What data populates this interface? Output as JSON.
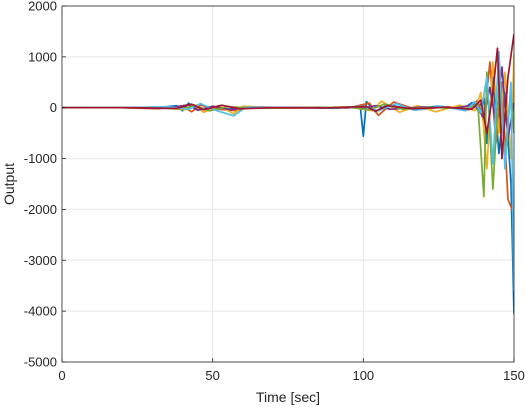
{
  "chart_data": {
    "type": "line",
    "xlabel": "Time [sec]",
    "ylabel": "Output",
    "xlim": [
      0,
      150
    ],
    "ylim": [
      -5000,
      2000
    ],
    "xticks": [
      0,
      50,
      100,
      150
    ],
    "yticks": [
      -5000,
      -4000,
      -3000,
      -2000,
      -1000,
      0,
      1000,
      2000
    ],
    "grid": true,
    "series": [
      {
        "color": "#0072BD",
        "points": [
          [
            0,
            0
          ],
          [
            20,
            0
          ],
          [
            30,
            -10
          ],
          [
            38,
            40
          ],
          [
            40,
            -60
          ],
          [
            42,
            90
          ],
          [
            45,
            -40
          ],
          [
            50,
            20
          ],
          [
            55,
            -30
          ],
          [
            60,
            10
          ],
          [
            70,
            0
          ],
          [
            80,
            5
          ],
          [
            90,
            -10
          ],
          [
            99,
            10
          ],
          [
            100,
            -560
          ],
          [
            101,
            120
          ],
          [
            104,
            -80
          ],
          [
            108,
            60
          ],
          [
            115,
            -20
          ],
          [
            125,
            30
          ],
          [
            133,
            -30
          ],
          [
            136,
            100
          ],
          [
            138,
            -50
          ],
          [
            140,
            200
          ],
          [
            141,
            -700
          ],
          [
            143,
            600
          ],
          [
            145,
            -900
          ],
          [
            147,
            300
          ],
          [
            149,
            -1500
          ],
          [
            150,
            -4050
          ]
        ]
      },
      {
        "color": "#D95319",
        "points": [
          [
            0,
            0
          ],
          [
            20,
            0
          ],
          [
            32,
            -20
          ],
          [
            40,
            30
          ],
          [
            43,
            -80
          ],
          [
            46,
            50
          ],
          [
            52,
            -30
          ],
          [
            58,
            -60
          ],
          [
            62,
            20
          ],
          [
            75,
            0
          ],
          [
            85,
            10
          ],
          [
            95,
            -5
          ],
          [
            102,
            90
          ],
          [
            105,
            -150
          ],
          [
            110,
            110
          ],
          [
            118,
            -40
          ],
          [
            128,
            20
          ],
          [
            135,
            -40
          ],
          [
            138,
            150
          ],
          [
            140,
            -300
          ],
          [
            142,
            900
          ],
          [
            144,
            -700
          ],
          [
            146,
            500
          ],
          [
            148,
            -1800
          ],
          [
            150,
            -2100
          ]
        ]
      },
      {
        "color": "#EDB120",
        "points": [
          [
            0,
            0
          ],
          [
            20,
            0
          ],
          [
            30,
            10
          ],
          [
            41,
            -40
          ],
          [
            44,
            60
          ],
          [
            47,
            -90
          ],
          [
            52,
            40
          ],
          [
            57,
            -120
          ],
          [
            60,
            30
          ],
          [
            72,
            -10
          ],
          [
            85,
            0
          ],
          [
            95,
            20
          ],
          [
            103,
            -60
          ],
          [
            106,
            130
          ],
          [
            112,
            -90
          ],
          [
            118,
            40
          ],
          [
            124,
            -80
          ],
          [
            132,
            50
          ],
          [
            137,
            -60
          ],
          [
            139,
            300
          ],
          [
            141,
            -1200
          ],
          [
            143,
            900
          ],
          [
            145,
            -500
          ],
          [
            147,
            700
          ],
          [
            149,
            -1000
          ],
          [
            150,
            1050
          ]
        ]
      },
      {
        "color": "#7E2F8E",
        "points": [
          [
            0,
            0
          ],
          [
            25,
            0
          ],
          [
            35,
            -10
          ],
          [
            42,
            60
          ],
          [
            45,
            -50
          ],
          [
            50,
            30
          ],
          [
            56,
            -40
          ],
          [
            62,
            10
          ],
          [
            80,
            0
          ],
          [
            92,
            5
          ],
          [
            100,
            -5
          ],
          [
            104,
            40
          ],
          [
            109,
            -30
          ],
          [
            120,
            15
          ],
          [
            130,
            -10
          ],
          [
            137,
            60
          ],
          [
            140,
            -200
          ],
          [
            142,
            400
          ],
          [
            144,
            -300
          ],
          [
            146,
            800
          ],
          [
            148,
            -600
          ],
          [
            150,
            100
          ]
        ]
      },
      {
        "color": "#77AC30",
        "points": [
          [
            0,
            0
          ],
          [
            30,
            0
          ],
          [
            40,
            -20
          ],
          [
            44,
            40
          ],
          [
            49,
            -60
          ],
          [
            55,
            20
          ],
          [
            65,
            -10
          ],
          [
            80,
            0
          ],
          [
            95,
            10
          ],
          [
            102,
            -40
          ],
          [
            107,
            70
          ],
          [
            113,
            -30
          ],
          [
            122,
            10
          ],
          [
            134,
            -20
          ],
          [
            138,
            80
          ],
          [
            140,
            -1750
          ],
          [
            141,
            700
          ],
          [
            143,
            -1600
          ],
          [
            145,
            400
          ],
          [
            147,
            -900
          ],
          [
            149,
            300
          ],
          [
            150,
            -500
          ]
        ]
      },
      {
        "color": "#4DBEEE",
        "points": [
          [
            0,
            0
          ],
          [
            20,
            0
          ],
          [
            35,
            20
          ],
          [
            42,
            -30
          ],
          [
            46,
            80
          ],
          [
            51,
            -50
          ],
          [
            57,
            -160
          ],
          [
            61,
            10
          ],
          [
            75,
            0
          ],
          [
            90,
            -5
          ],
          [
            100,
            30
          ],
          [
            105,
            -60
          ],
          [
            111,
            80
          ],
          [
            117,
            -50
          ],
          [
            126,
            30
          ],
          [
            134,
            -60
          ],
          [
            137,
            120
          ],
          [
            139,
            -100
          ],
          [
            141,
            600
          ],
          [
            143,
            -1100
          ],
          [
            145,
            1100
          ],
          [
            147,
            -1200
          ],
          [
            149,
            500
          ],
          [
            150,
            -3600
          ]
        ]
      },
      {
        "color": "#A2142F",
        "points": [
          [
            0,
            0
          ],
          [
            25,
            0
          ],
          [
            38,
            -15
          ],
          [
            43,
            70
          ],
          [
            47,
            -40
          ],
          [
            53,
            50
          ],
          [
            59,
            -20
          ],
          [
            70,
            0
          ],
          [
            88,
            -5
          ],
          [
            101,
            25
          ],
          [
            104,
            -70
          ],
          [
            108,
            40
          ],
          [
            116,
            -20
          ],
          [
            127,
            10
          ],
          [
            136,
            -30
          ],
          [
            139,
            150
          ],
          [
            141,
            -500
          ],
          [
            143,
            300
          ],
          [
            144.5,
            1170
          ],
          [
            146,
            -1000
          ],
          [
            148,
            600
          ],
          [
            150,
            1450
          ]
        ]
      }
    ]
  }
}
